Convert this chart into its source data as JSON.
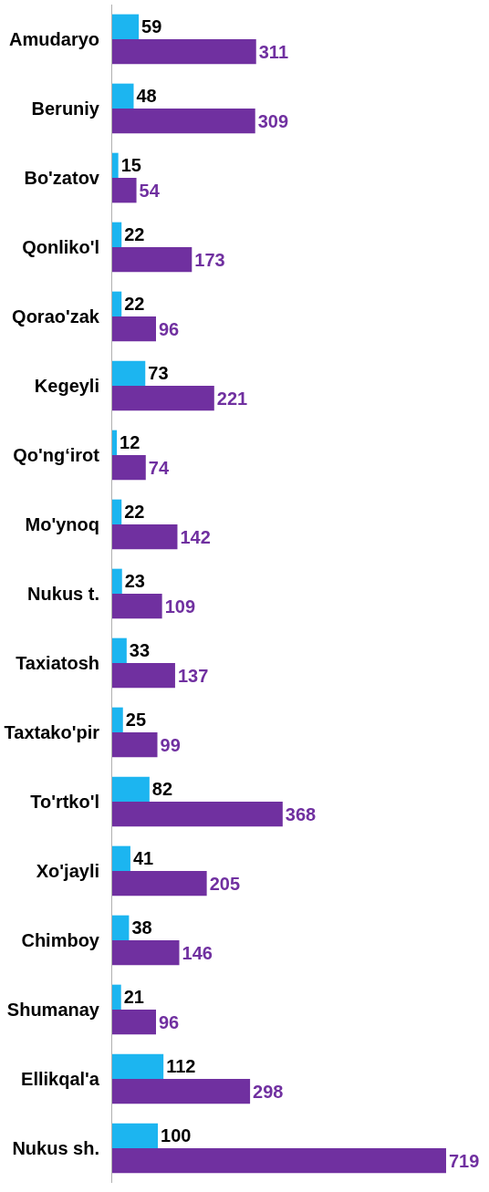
{
  "chart_data": {
    "type": "bar",
    "orientation": "horizontal",
    "data_labels": true,
    "legend": false,
    "categories": [
      "Amudaryo",
      "Beruniy",
      "Bo'zatov",
      "Qonliko'l",
      "Qorao'zak",
      "Kegeyli",
      "Qo'ng‘irot",
      "Mo'ynoq",
      "Nukus t.",
      "Taxiatosh",
      "Taxtako'pir",
      "To'rtko'l",
      "Xo'jayli",
      "Chimboy",
      "Shumanay",
      "Ellikqal'a",
      "Nukus sh."
    ],
    "series": [
      {
        "color": "#1cb5f0",
        "values": [
          59,
          48,
          15,
          22,
          22,
          73,
          12,
          22,
          23,
          33,
          25,
          82,
          41,
          38,
          21,
          112,
          100
        ]
      },
      {
        "color": "#7030a0",
        "values": [
          311,
          309,
          54,
          173,
          96,
          221,
          74,
          142,
          109,
          137,
          99,
          368,
          205,
          146,
          96,
          298,
          719
        ]
      }
    ]
  }
}
